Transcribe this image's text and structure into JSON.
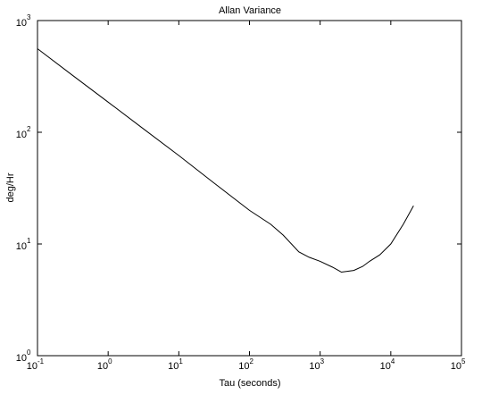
{
  "chart_data": {
    "type": "line",
    "title": "Allan Variance",
    "x_label": "Tau (seconds)",
    "y_label": "deg/Hr",
    "log_x": true,
    "log_y": true,
    "color": "#000000",
    "x": [
      0.1,
      0.3,
      1,
      3,
      10,
      30,
      100,
      200,
      300,
      500,
      700,
      1000,
      1500,
      2000,
      3000,
      4000,
      5000,
      7000,
      10000,
      15000,
      21000
    ],
    "values": [
      560,
      330,
      186,
      110,
      62,
      36,
      20,
      15,
      12,
      8.5,
      7.6,
      7.0,
      6.2,
      5.6,
      5.8,
      6.3,
      7.0,
      8.0,
      10,
      15,
      22
    ],
    "xlim": [
      0.1,
      100000
    ],
    "ylim": [
      1,
      1000
    ],
    "xticks": [
      {
        "value": 0.1,
        "label": "10",
        "exponent": "-1"
      },
      {
        "value": 1,
        "label": "10",
        "exponent": "0"
      },
      {
        "value": 10,
        "label": "10",
        "exponent": "1"
      },
      {
        "value": 100,
        "label": "10",
        "exponent": "2"
      },
      {
        "value": 1000,
        "label": "10",
        "exponent": "3"
      },
      {
        "value": 10000,
        "label": "10",
        "exponent": "4"
      },
      {
        "value": 100000,
        "label": "10",
        "exponent": "5"
      }
    ],
    "yticks": [
      {
        "value": 1,
        "label": "10",
        "exponent": "0"
      },
      {
        "value": 10,
        "label": "10",
        "exponent": "1"
      },
      {
        "value": 100,
        "label": "10",
        "exponent": "2"
      },
      {
        "value": 1000,
        "label": "10",
        "exponent": "3"
      }
    ]
  }
}
